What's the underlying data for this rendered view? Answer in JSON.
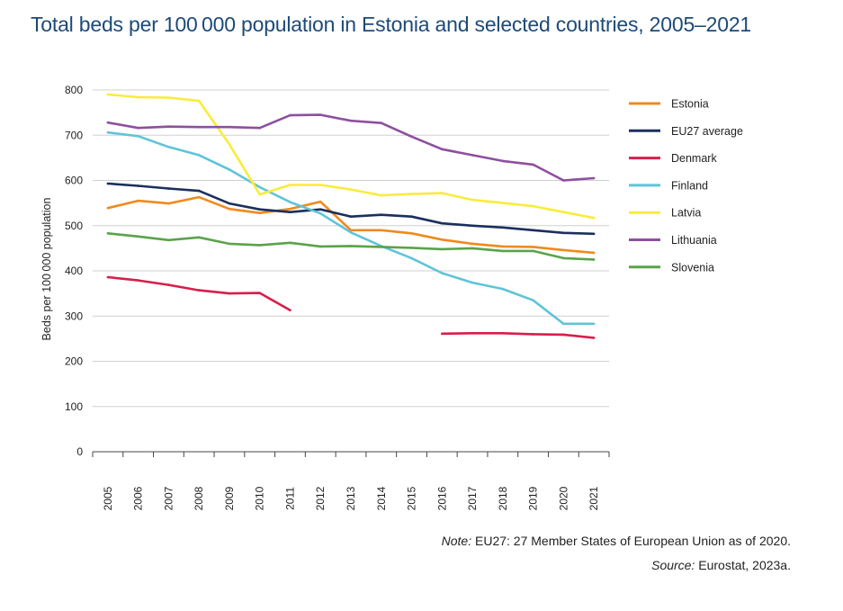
{
  "title": "Total beds per 100 000 population in Estonia and selected countries, 2005–2021",
  "note": {
    "prefix": "Note:",
    "text": " EU27: 27 Member States of European Union as of 2020."
  },
  "source": {
    "prefix": "Source:",
    "text": " Eurostat, 2023a."
  },
  "chart_data": {
    "type": "line",
    "title": "Total beds per 100 000 population in Estonia and selected countries, 2005–2021",
    "xlabel": "",
    "ylabel": "Beds per 100 000 population",
    "ylim": [
      0,
      800
    ],
    "yticks": [
      0,
      100,
      200,
      300,
      400,
      500,
      600,
      700,
      800
    ],
    "grid": "horizontal",
    "legend_position": "right",
    "x": [
      "2005",
      "2006",
      "2007",
      "2008",
      "2009",
      "2010",
      "2011",
      "2012",
      "2013",
      "2014",
      "2015",
      "2016",
      "2017",
      "2018",
      "2019",
      "2020",
      "2021"
    ],
    "series": [
      {
        "name": "Estonia",
        "color": "#f08a1c",
        "values": [
          539,
          555,
          549,
          563,
          537,
          528,
          537,
          553,
          490,
          490,
          483,
          469,
          460,
          454,
          453,
          446,
          440
        ]
      },
      {
        "name": "EU27 average",
        "color": "#1b2f5e",
        "values": [
          593,
          588,
          582,
          577,
          549,
          536,
          530,
          536,
          520,
          524,
          520,
          505,
          500,
          496,
          490,
          484,
          482
        ]
      },
      {
        "name": "Denmark",
        "color": "#d81e4b",
        "values": [
          386,
          379,
          369,
          357,
          350,
          351,
          313,
          null,
          null,
          null,
          null,
          261,
          262,
          262,
          260,
          259,
          252
        ]
      },
      {
        "name": "Finland",
        "color": "#5fc4d8",
        "values": [
          706,
          698,
          674,
          656,
          624,
          585,
          552,
          527,
          485,
          455,
          428,
          395,
          374,
          360,
          335,
          283,
          283
        ]
      },
      {
        "name": "Latvia",
        "color": "#f9ec3a",
        "values": [
          790,
          784,
          783,
          776,
          680,
          569,
          590,
          590,
          580,
          567,
          570,
          572,
          557,
          550,
          543,
          530,
          517
        ]
      },
      {
        "name": "Lithuania",
        "color": "#8e4fa0",
        "values": [
          728,
          716,
          719,
          718,
          718,
          716,
          744,
          745,
          732,
          727,
          697,
          669,
          656,
          643,
          635,
          600,
          605
        ]
      },
      {
        "name": "Slovenia",
        "color": "#5aa34a",
        "values": [
          483,
          476,
          468,
          474,
          460,
          457,
          462,
          454,
          455,
          453,
          451,
          448,
          450,
          444,
          444,
          428,
          425
        ]
      }
    ]
  }
}
